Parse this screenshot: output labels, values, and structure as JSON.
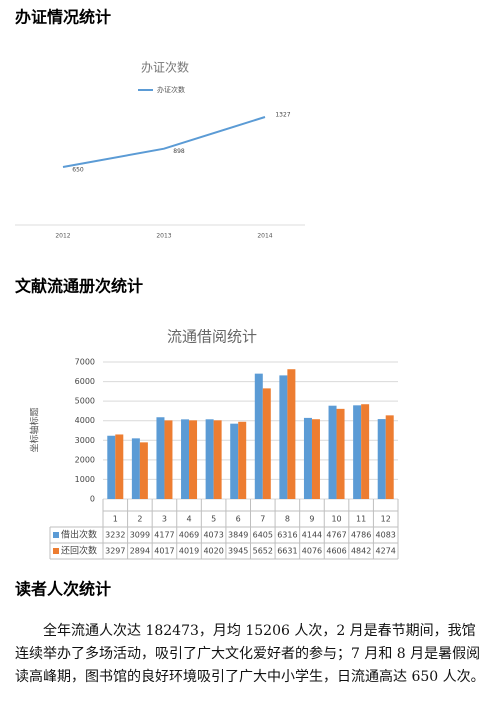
{
  "headings": [
    "办证情况统计",
    "文献流通册次统计",
    "读者人次统计"
  ],
  "chart_data": [
    {
      "type": "line",
      "title": "办证次数",
      "categories": [
        "2012",
        "2013",
        "2014"
      ],
      "series": [
        {
          "name": "办证次数",
          "color": "#5b9bd5",
          "values": [
            650,
            898,
            1327
          ]
        }
      ]
    },
    {
      "type": "bar",
      "title": "流通借阅统计",
      "y_label": "坐标轴标题",
      "categories": [
        "1",
        "2",
        "3",
        "4",
        "5",
        "6",
        "7",
        "8",
        "9",
        "10",
        "11",
        "12"
      ],
      "series": [
        {
          "name": "借出次数",
          "color": "#5b9bd5",
          "values": [
            3232,
            3099,
            4177,
            4069,
            4073,
            3849,
            6405,
            6316,
            4144,
            4767,
            4786,
            4083
          ]
        },
        {
          "name": "还回次数",
          "color": "#ed7d31",
          "values": [
            3297,
            2894,
            4017,
            4019,
            4020,
            3945,
            5652,
            6631,
            4076,
            4606,
            4842,
            4274
          ]
        }
      ],
      "ylim": [
        0,
        7000
      ],
      "yticks": [
        0,
        1000,
        2000,
        3000,
        4000,
        5000,
        6000,
        7000
      ],
      "grid": true
    }
  ],
  "paragraph": "全年流通人次达 182473，月均 15206 人次，2 月是春节期间，我馆连续举办了多场活动，吸引了广大文化爱好者的参与；7 月和 8 月是暑假阅读高峰期，图书馆的良好环境吸引了广大中小学生，日流通高达 650 人次。"
}
